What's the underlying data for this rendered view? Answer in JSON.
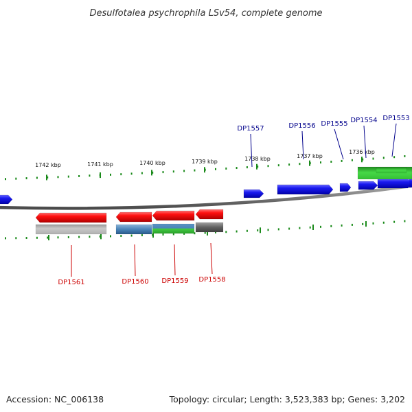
{
  "title": "Desulfotalea psychrophila LSv54, complete genome",
  "footer": {
    "accession": "Accession: NC_006138",
    "summary": "Topology: circular; Length: 3,523,383 bp; Genes: 3,202"
  },
  "colors": {
    "forward_gene": "#1010ee",
    "reverse_gene": "#ee1010",
    "tick": "#1a8a1a",
    "backbone": "#808080",
    "forward_label": "#00008b",
    "reverse_label": "#cc0000"
  },
  "scale_labels": [
    "1742 kbp",
    "1741 kbp",
    "1740 kbp",
    "1739 kbp",
    "1738 kbp",
    "1737 kbp",
    "1736 kbp"
  ],
  "gene_labels": {
    "forward": [
      "DP1557",
      "DP1556",
      "DP1555",
      "DP1554",
      "DP1553"
    ],
    "reverse": [
      "DP1561",
      "DP1560",
      "DP1559",
      "DP1558"
    ]
  },
  "forward_features": [
    "gene",
    "gene",
    "gene",
    "gene",
    "gene",
    "gene"
  ],
  "reverse_features": [
    "gene",
    "gene",
    "gene",
    "gene"
  ],
  "annotation_tracks": [
    "rRNA/annotation",
    "rRNA/annotation",
    "rRNA/annotation",
    "rRNA/annotation",
    "rRNA/annotation",
    "rRNA/annotation"
  ]
}
